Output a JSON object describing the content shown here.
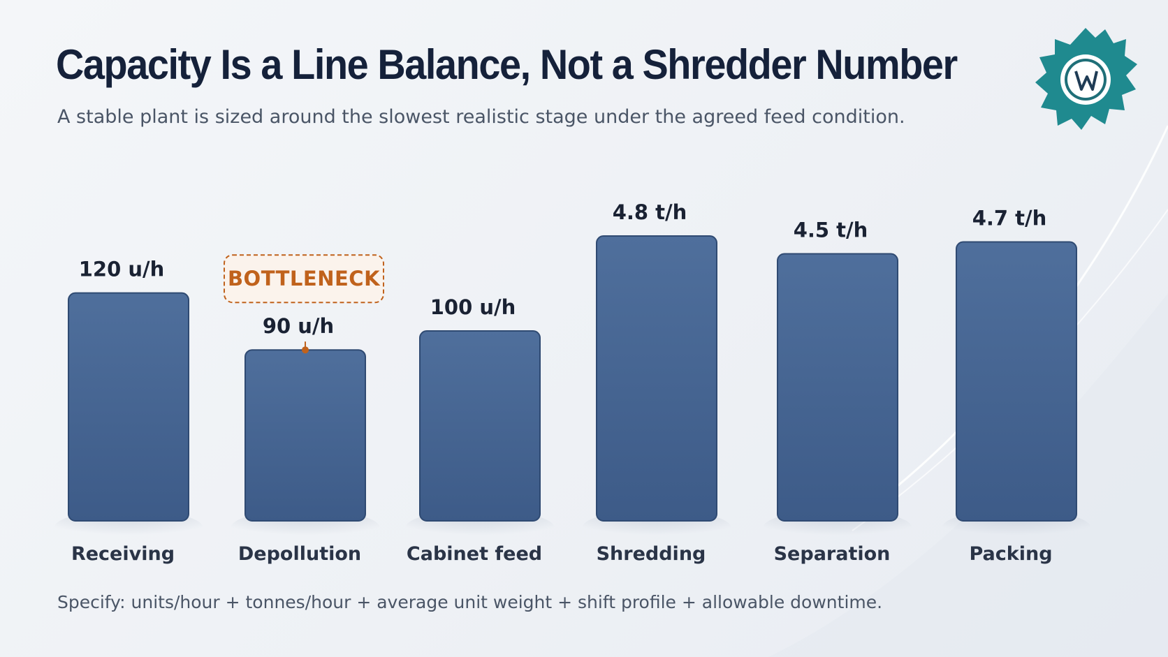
{
  "title": "Capacity Is a Line Balance, Not a Shredder Number",
  "subtitle": "A stable plant is sized around the slowest realistic stage under the agreed feed condition.",
  "footer": "Specify: units/hour + tonnes/hour + average unit weight + shift profile + allowable downtime.",
  "logo_icon": "gear-w-logo-icon",
  "colors": {
    "bar": "#3f5f8c",
    "bar_light": "#4f6f9c",
    "highlight": "#c0621c",
    "title": "#15213a",
    "logo": "#1f8a8f"
  },
  "chart_data": {
    "type": "bar",
    "categories": [
      "Receiving",
      "Depollution",
      "Cabinet feed",
      "Shredding",
      "Separation",
      "Packing"
    ],
    "values": [
      120,
      90,
      100,
      4.8,
      4.5,
      4.7
    ],
    "units": [
      "u/h",
      "u/h",
      "u/h",
      "t/h",
      "t/h",
      "t/h"
    ],
    "data_labels": [
      "120 u/h",
      "90 u/h",
      "100 u/h",
      "4.8 t/h",
      "4.5 t/h",
      "4.7 t/h"
    ],
    "annotation": {
      "text": "BOTTLENECK",
      "category": "Depollution"
    },
    "grid": false,
    "legend": "none"
  }
}
